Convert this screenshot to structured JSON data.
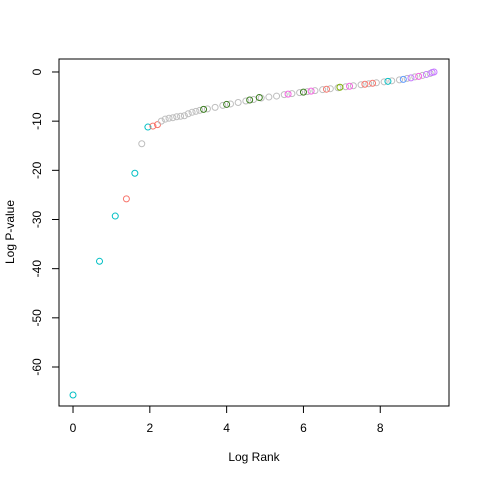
{
  "chart_data": {
    "type": "scatter",
    "x_label": "Log Rank",
    "y_label": "Log P-value",
    "xlim": [
      -0.365,
      9.79
    ],
    "ylim": [
      -67.93,
      2.64
    ],
    "xticks": [
      0,
      2,
      4,
      6,
      8
    ],
    "yticks": [
      0,
      -10,
      -20,
      -30,
      -40,
      -50,
      -60
    ],
    "x": [
      0,
      0.69,
      1.1,
      1.39,
      1.61,
      1.79,
      1.95,
      2.08,
      2.2,
      2.3,
      2.4,
      2.5,
      2.6,
      2.7,
      2.8,
      2.9,
      3.0,
      3.1,
      3.2,
      3.3,
      3.5,
      3.7,
      3.9,
      4.1,
      4.3,
      4.5,
      4.7,
      4.9,
      5.1,
      5.3,
      5.5,
      5.7,
      5.9,
      6.1,
      6.3,
      6.5,
      6.7,
      6.9,
      7.1,
      7.3,
      7.5,
      7.7,
      7.9,
      8.1,
      8.3,
      8.5,
      8.7,
      8.9,
      9.1,
      9.3,
      3.4,
      4.0,
      4.6,
      4.85,
      5.6,
      6.0,
      6.2,
      6.6,
      6.95,
      7.2,
      7.6,
      7.8,
      8.2,
      8.6,
      8.8,
      9.0,
      9.2,
      9.35,
      9.4
    ],
    "values": [
      -65.7,
      -38.5,
      -29.3,
      -25.8,
      -20.6,
      -14.6,
      -11.2,
      -11.0,
      -10.7,
      -10.0,
      -9.6,
      -9.4,
      -9.3,
      -9.1,
      -9.0,
      -8.9,
      -8.5,
      -8.2,
      -8.0,
      -7.8,
      -7.5,
      -7.2,
      -6.8,
      -6.5,
      -6.2,
      -5.9,
      -5.6,
      -5.3,
      -5.1,
      -4.9,
      -4.6,
      -4.4,
      -4.2,
      -4.0,
      -3.8,
      -3.6,
      -3.4,
      -3.2,
      -3.0,
      -2.8,
      -2.6,
      -2.4,
      -2.2,
      -2.0,
      -1.8,
      -1.6,
      -1.3,
      -1.0,
      -0.7,
      -0.3,
      -7.6,
      -6.6,
      -5.7,
      -5.2,
      -4.5,
      -4.1,
      -3.9,
      -3.5,
      -3.1,
      -2.9,
      -2.5,
      -2.3,
      -1.9,
      -1.5,
      -1.2,
      -0.9,
      -0.5,
      -0.1,
      0
    ],
    "colors": [
      "#00bfc4",
      "#00bfc4",
      "#00bfc4",
      "#f8766d",
      "#00bfc4",
      "#bebebe",
      "#00bfc4",
      "#f8766d",
      "#f8766d",
      "#bebebe",
      "#bebebe",
      "#bebebe",
      "#bebebe",
      "#bebebe",
      "#bebebe",
      "#bebebe",
      "#bebebe",
      "#bebebe",
      "#bebebe",
      "#bebebe",
      "#bebebe",
      "#bebebe",
      "#bebebe",
      "#bebebe",
      "#bebebe",
      "#bebebe",
      "#bebebe",
      "#bebebe",
      "#bebebe",
      "#bebebe",
      "#bebebe",
      "#bebebe",
      "#bebebe",
      "#bebebe",
      "#bebebe",
      "#bebebe",
      "#bebebe",
      "#bebebe",
      "#bebebe",
      "#bebebe",
      "#bebebe",
      "#bebebe",
      "#bebebe",
      "#bebebe",
      "#bebebe",
      "#bebebe",
      "#bebebe",
      "#bebebe",
      "#bebebe",
      "#bebebe",
      "#3a7d1e",
      "#3a7d1e",
      "#3a7d1e",
      "#3a7d1e",
      "#f564e3",
      "#3a7d1e",
      "#f564e3",
      "#f8766d",
      "#7cae00",
      "#f564e3",
      "#f8766d",
      "#f8766d",
      "#00bfc4",
      "#619cff",
      "#c77cff",
      "#f564e3",
      "#c77cff",
      "#c77cff",
      "#c77cff"
    ]
  }
}
